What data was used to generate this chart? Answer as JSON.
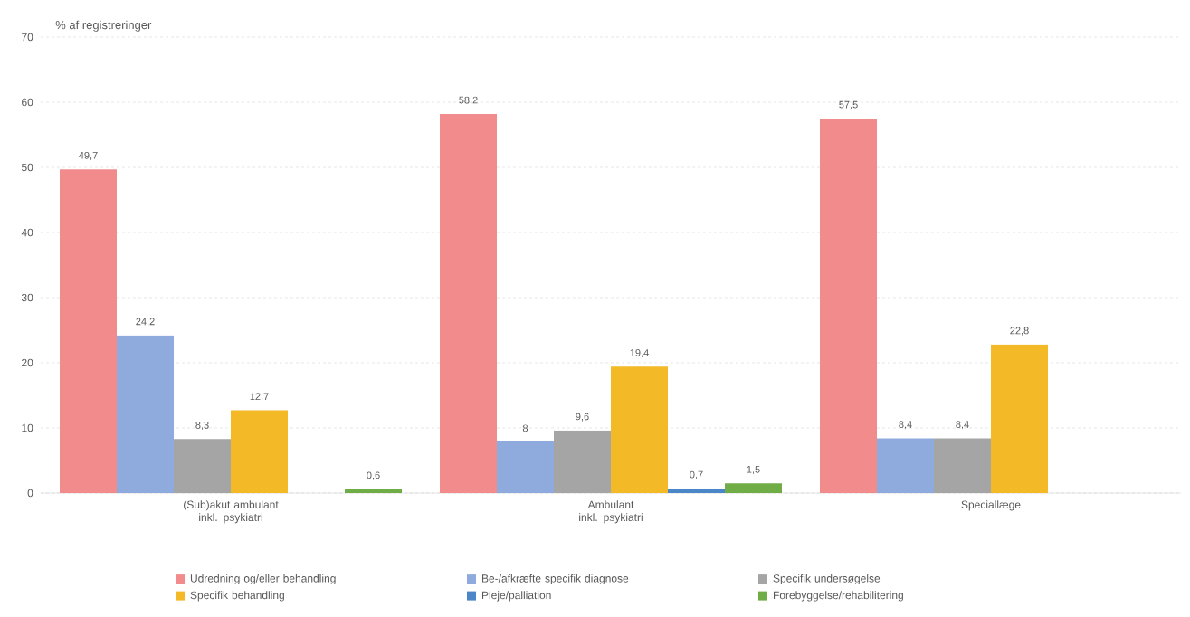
{
  "chart_data": {
    "type": "bar",
    "ylabel": "% af registreringer",
    "categories": [
      "(Sub)akut ambulant inkl. psykiatri",
      "Ambulant inkl. psykiatri",
      "Speciallæge"
    ],
    "series": [
      {
        "name": "Udredning og/eller behandling",
        "color": "#f28b8b",
        "values": [
          49.7,
          58.2,
          57.5
        ],
        "value_labels": [
          "49,7",
          "58,2",
          "57,5"
        ]
      },
      {
        "name": "Be-/afkræfte specifik diagnose",
        "color": "#8faadc",
        "values": [
          24.2,
          8,
          8.4
        ],
        "value_labels": [
          "24,2",
          "8",
          "8,4"
        ]
      },
      {
        "name": "Specifik undersøgelse",
        "color": "#a5a5a5",
        "values": [
          8.3,
          9.6,
          8.4
        ],
        "value_labels": [
          "8,3",
          "9,6",
          "8,4"
        ]
      },
      {
        "name": "Specifik behandling",
        "color": "#f4b927",
        "values": [
          12.7,
          19.4,
          22.8
        ],
        "value_labels": [
          "12,7",
          "19,4",
          "22,8"
        ]
      },
      {
        "name": "Pleje/palliation",
        "color": "#4a86c8",
        "values": [
          null,
          0.7,
          null
        ],
        "value_labels": [
          null,
          "0,7",
          null
        ]
      },
      {
        "name": "Forebyggelse/rehabilitering",
        "color": "#70ad47",
        "values": [
          0.6,
          1.5,
          null
        ],
        "value_labels": [
          "0,6",
          "1,5",
          null
        ]
      }
    ],
    "ylim": [
      0,
      70
    ],
    "yticks": [
      0,
      10,
      20,
      30,
      40,
      50,
      60,
      70
    ],
    "grid": "y",
    "legend": "bottom"
  }
}
